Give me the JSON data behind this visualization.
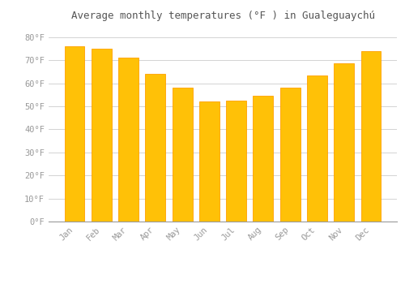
{
  "months": [
    "Jan",
    "Feb",
    "Mar",
    "Apr",
    "May",
    "Jun",
    "Jul",
    "Aug",
    "Sep",
    "Oct",
    "Nov",
    "Dec"
  ],
  "values": [
    76,
    75,
    71,
    64,
    58,
    52,
    52.5,
    54.5,
    58,
    63.5,
    68.5,
    74
  ],
  "bar_color": "#FFC107",
  "bar_edge_color": "#FFA000",
  "title": "Average monthly temperatures (°F ) in Gualeguaychú",
  "ylim": [
    0,
    85
  ],
  "yticks": [
    0,
    10,
    20,
    30,
    40,
    50,
    60,
    70,
    80
  ],
  "ytick_labels": [
    "0°F",
    "10°F",
    "20°F",
    "30°F",
    "40°F",
    "50°F",
    "60°F",
    "70°F",
    "80°F"
  ],
  "title_fontsize": 9,
  "tick_fontsize": 7.5,
  "background_color": "#ffffff",
  "grid_color": "#cccccc"
}
